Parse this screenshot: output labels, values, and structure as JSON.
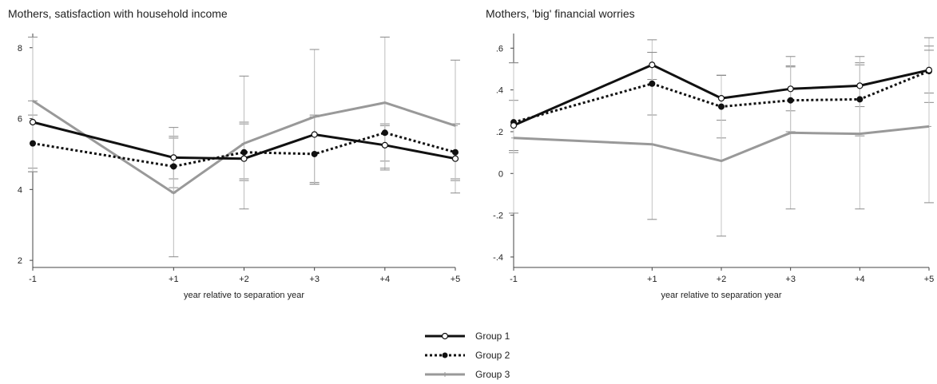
{
  "chart_data": [
    {
      "type": "line",
      "title": "Mothers, satisfaction with household income",
      "xlabel": "year relative to separation year",
      "ylabel": "",
      "x": [
        -1,
        1,
        2,
        3,
        4,
        5
      ],
      "x_tick_labels": [
        "-1",
        "+1",
        "+2",
        "+3",
        "+4",
        "+5"
      ],
      "xlim": [
        -1,
        5
      ],
      "ylim": [
        1.8,
        8.4
      ],
      "y_ticks": [
        2,
        4,
        6,
        8
      ],
      "y_tick_labels": [
        "2",
        "4",
        "6",
        "8"
      ],
      "series": [
        {
          "name": "Group 1",
          "values": [
            5.9,
            4.9,
            4.87,
            5.55,
            5.25,
            4.87
          ],
          "ci_low": [
            4.6,
            4.3,
            4.3,
            4.2,
            4.8,
            4.3
          ],
          "ci_high": [
            6.5,
            5.5,
            5.9,
            6.1,
            5.8,
            5.85
          ]
        },
        {
          "name": "Group 2",
          "values": [
            5.3,
            4.65,
            5.05,
            5.0,
            5.6,
            5.05
          ],
          "ci_low": [
            4.5,
            4.05,
            4.25,
            4.15,
            4.55,
            4.25
          ],
          "ci_high": [
            6.1,
            5.45,
            5.85,
            6.05,
            5.85,
            5.85
          ]
        },
        {
          "name": "Group 3",
          "values": [
            6.5,
            3.9,
            5.3,
            6.05,
            6.45,
            5.8
          ],
          "ci_low": [
            4.5,
            2.1,
            3.45,
            4.15,
            4.6,
            3.9
          ],
          "ci_high": [
            8.3,
            5.75,
            7.2,
            7.95,
            8.3,
            7.65
          ]
        }
      ]
    },
    {
      "type": "line",
      "title": "Mothers, 'big' financial worries",
      "xlabel": "year relative to separation year",
      "ylabel": "",
      "x": [
        -1,
        1,
        2,
        3,
        4,
        5
      ],
      "x_tick_labels": [
        "-1",
        "+1",
        "+2",
        "+3",
        "+4",
        "+5"
      ],
      "xlim": [
        -1,
        5
      ],
      "ylim": [
        -0.45,
        0.67
      ],
      "y_ticks": [
        -0.4,
        -0.2,
        0,
        0.2,
        0.4,
        0.6
      ],
      "y_tick_labels": [
        "-.4",
        "-.2",
        "0",
        ".2",
        ".4",
        ".6"
      ],
      "series": [
        {
          "name": "Group 1",
          "values": [
            0.23,
            0.52,
            0.36,
            0.405,
            0.42,
            0.495
          ],
          "ci_low": [
            0.11,
            0.45,
            0.255,
            0.3,
            0.32,
            0.34
          ],
          "ci_high": [
            0.35,
            0.64,
            0.47,
            0.515,
            0.53,
            0.65
          ]
        },
        {
          "name": "Group 2",
          "values": [
            0.245,
            0.43,
            0.32,
            0.35,
            0.355,
            0.49
          ],
          "ci_low": [
            0.1,
            0.28,
            0.17,
            0.2,
            0.18,
            0.385
          ],
          "ci_high": [
            0.53,
            0.58,
            0.47,
            0.51,
            0.52,
            0.61
          ]
        },
        {
          "name": "Group 3",
          "values": [
            0.17,
            0.14,
            0.06,
            0.195,
            0.19,
            0.225
          ],
          "ci_low": [
            -0.19,
            -0.22,
            -0.3,
            -0.17,
            -0.17,
            -0.14
          ],
          "ci_high": [
            0.53,
            0.58,
            0.47,
            0.56,
            0.56,
            0.59
          ]
        }
      ]
    }
  ],
  "legend": {
    "position": "bottom-center",
    "items": [
      "Group 1",
      "Group 2",
      "Group 3"
    ]
  },
  "styles": {
    "Group 1": {
      "color": "#111111",
      "dash": "solid",
      "marker": "hollow-circle"
    },
    "Group 2": {
      "color": "#111111",
      "dash": "dotted",
      "marker": "filled-circle"
    },
    "Group 3": {
      "color": "#999999",
      "dash": "solid",
      "marker": "plus"
    }
  }
}
